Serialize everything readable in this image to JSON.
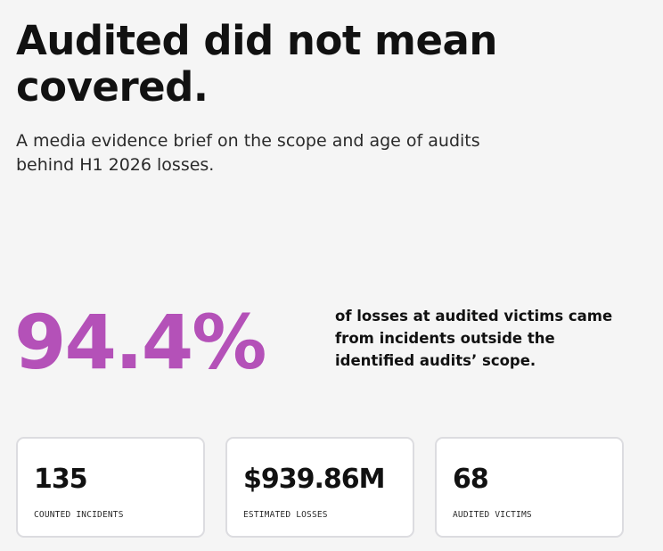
{
  "header": {
    "title": "Audited did not mean covered.",
    "subtitle": "A media evidence brief on the scope and age of audits behind H1 2026 losses."
  },
  "hero": {
    "stat": "94.4%",
    "description": "of losses at audited victims came from incidents outside the identified audits’ scope.",
    "accent_color": "#b451b8"
  },
  "cards": [
    {
      "value": "135",
      "label": "COUNTED INCIDENTS"
    },
    {
      "value": "$939.86M",
      "label": "ESTIMATED LOSSES"
    },
    {
      "value": "68",
      "label": "AUDITED VICTIMS"
    }
  ]
}
